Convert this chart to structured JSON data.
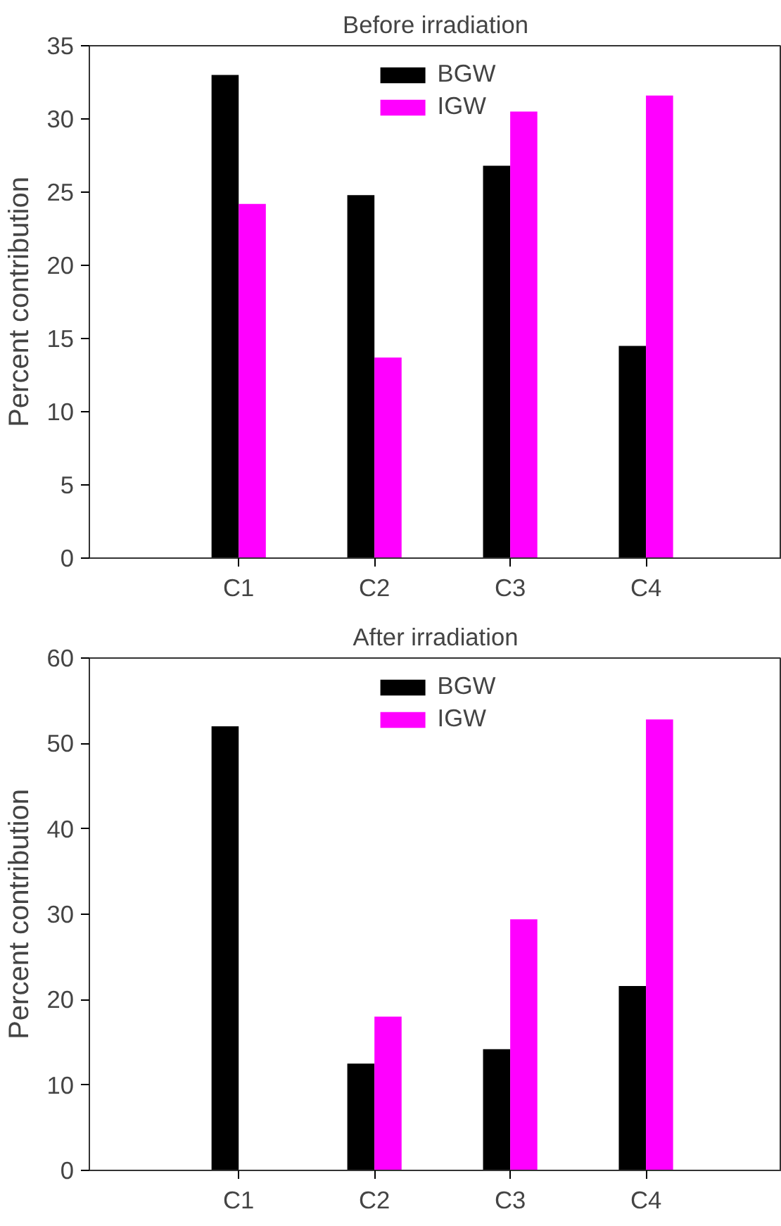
{
  "chart_data": [
    {
      "type": "bar",
      "title": "Before irradiation",
      "ylabel": "Percent contribution",
      "categories": [
        "C1",
        "C2",
        "C3",
        "C4"
      ],
      "series": [
        {
          "name": "BGW",
          "color": "#000000",
          "values": [
            33.0,
            24.8,
            26.8,
            14.5
          ]
        },
        {
          "name": "IGW",
          "color": "#ff00ff",
          "values": [
            24.2,
            13.7,
            30.5,
            31.6
          ]
        }
      ],
      "ylim": [
        0,
        35
      ],
      "yticks": [
        0,
        5,
        10,
        15,
        20,
        25,
        30,
        35
      ],
      "legend": "top",
      "grid": false
    },
    {
      "type": "bar",
      "title": "After irradiation",
      "ylabel": "Percent contribution",
      "categories": [
        "C1",
        "C2",
        "C3",
        "C4"
      ],
      "series": [
        {
          "name": "BGW",
          "color": "#000000",
          "values": [
            52.0,
            12.5,
            14.2,
            21.6
          ]
        },
        {
          "name": "IGW",
          "color": "#ff00ff",
          "values": [
            0,
            18.0,
            29.4,
            52.8
          ]
        }
      ],
      "ylim": [
        0,
        60
      ],
      "yticks": [
        0,
        10,
        20,
        30,
        40,
        50,
        60
      ],
      "legend": "top",
      "grid": false
    }
  ]
}
